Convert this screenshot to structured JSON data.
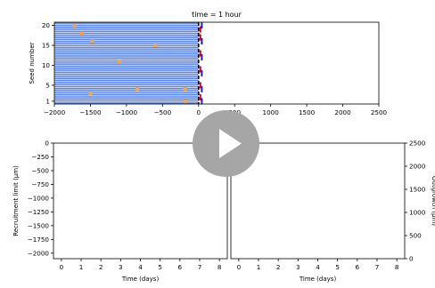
{
  "video": {
    "play_label": "play"
  },
  "chart_data": [
    {
      "type": "scatter",
      "title": "time = 1 hour",
      "xlabel": "",
      "ylabel": "Seed number",
      "xlim": [
        -2000,
        2500
      ],
      "ylim": [
        0.3,
        20.8
      ],
      "xticks": [
        -2000,
        -1500,
        -1000,
        -500,
        0,
        500,
        1000,
        1500,
        2000,
        2500
      ],
      "xtick_labels": [
        "−2000",
        "−1500",
        "−1000",
        "−500",
        "0",
        "500",
        "1000",
        "1500",
        "2000",
        "2500"
      ],
      "yticks": [
        1,
        5,
        10,
        15,
        20
      ],
      "ytick_labels": [
        "1",
        "5",
        "10",
        "15",
        "20"
      ],
      "band_color": "#5b86e5",
      "band_line_color": "#ffffff",
      "band_x_range": [
        -2000,
        0
      ],
      "band_rows": 20,
      "grid": false,
      "series": [
        {
          "marker": "square",
          "color": "#f5a742",
          "points": [
            {
              "x": -1620,
              "y": 18
            },
            {
              "x": -1480,
              "y": 16
            },
            {
              "x": -600,
              "y": 15
            },
            {
              "x": -1100,
              "y": 11
            },
            {
              "x": -850,
              "y": 4
            },
            {
              "x": -1500,
              "y": 3
            },
            {
              "x": -190,
              "y": 4
            },
            {
              "x": -180,
              "y": 1
            },
            {
              "x": -1720,
              "y": 20
            }
          ]
        },
        {
          "marker": "vertical-line",
          "color": "#000000",
          "x": 0
        },
        {
          "marker": "short-dash",
          "color": "#cc0033",
          "points": [
            {
              "x": 0,
              "y": 19
            },
            {
              "x": 0,
              "y": 17
            },
            {
              "x": 0,
              "y": 13
            },
            {
              "x": 0,
              "y": 9
            },
            {
              "x": 0,
              "y": 5
            },
            {
              "x": 0,
              "y": 2
            }
          ]
        },
        {
          "marker": "short-dash",
          "color": "#1f1fcf",
          "points": [
            {
              "x": 20,
              "y": 20
            },
            {
              "x": 20,
              "y": 16
            },
            {
              "x": 20,
              "y": 12
            },
            {
              "x": 20,
              "y": 8
            },
            {
              "x": 20,
              "y": 4
            },
            {
              "x": 20,
              "y": 1
            }
          ]
        }
      ]
    },
    {
      "type": "line",
      "title": "",
      "xlabel": "Time (days)",
      "ylabel": "Recruitment limit (μm)",
      "xlim": [
        -0.4,
        8.4
      ],
      "ylim": [
        -2100,
        0
      ],
      "xticks": [
        0,
        1,
        2,
        3,
        4,
        5,
        6,
        7,
        8
      ],
      "xtick_labels": [
        "0",
        "1",
        "2",
        "3",
        "4",
        "5",
        "6",
        "7",
        "8"
      ],
      "yticks": [
        0,
        -250,
        -500,
        -750,
        -1000,
        -1250,
        -1500,
        -1750,
        -2000
      ],
      "ytick_labels": [
        "0",
        "−250",
        "−500",
        "−750",
        "−1000",
        "−1250",
        "−1500",
        "−1750",
        "−2000"
      ],
      "series": []
    },
    {
      "type": "line",
      "title": "",
      "xlabel": "Time (days)",
      "ylabel": "Outgrowth (μm)",
      "y_axis_side": "right",
      "xlim": [
        -0.4,
        8.4
      ],
      "ylim": [
        0,
        2500
      ],
      "xticks": [
        0,
        1,
        2,
        3,
        4,
        5,
        6,
        7,
        8
      ],
      "xtick_labels": [
        "0",
        "1",
        "2",
        "3",
        "4",
        "5",
        "6",
        "7",
        "8"
      ],
      "yticks": [
        0,
        500,
        1000,
        1500,
        2000,
        2500
      ],
      "ytick_labels": [
        "0",
        "500",
        "1000",
        "1500",
        "2000",
        "2500"
      ],
      "series": []
    }
  ]
}
